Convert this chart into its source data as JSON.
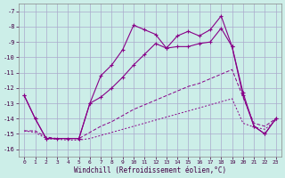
{
  "xlabel": "Windchill (Refroidissement éolien,°C)",
  "bg_color": "#cceee8",
  "grid_color": "#aaaacc",
  "line_color": "#880088",
  "xlim": [
    -0.5,
    23.5
  ],
  "ylim": [
    -16.5,
    -6.5
  ],
  "yticks": [
    -16,
    -15,
    -14,
    -13,
    -12,
    -11,
    -10,
    -9,
    -8,
    -7
  ],
  "xticks": [
    0,
    1,
    2,
    3,
    4,
    5,
    6,
    7,
    8,
    9,
    10,
    11,
    12,
    13,
    14,
    15,
    16,
    17,
    18,
    19,
    20,
    21,
    22,
    23
  ],
  "line1_x": [
    0,
    1,
    2,
    3,
    4,
    5,
    6,
    7,
    8,
    9,
    10,
    11,
    12,
    13,
    14,
    15,
    16,
    17,
    18,
    19,
    20,
    21,
    22,
    23
  ],
  "line1_y": [
    -12.5,
    -14.0,
    -15.3,
    -15.3,
    -15.3,
    -15.3,
    -13.0,
    -11.2,
    -10.5,
    -9.5,
    -7.9,
    -8.2,
    -8.5,
    -9.4,
    -8.6,
    -8.3,
    -8.6,
    -8.2,
    -7.3,
    -9.3,
    -12.3,
    -14.5,
    -15.0,
    -14.0
  ],
  "line2_x": [
    0,
    1,
    2,
    5,
    6,
    7,
    8,
    9,
    10,
    11,
    12,
    13,
    14,
    15,
    16,
    17,
    18,
    19,
    20,
    21,
    22,
    23
  ],
  "line2_y": [
    -12.5,
    -14.0,
    -15.3,
    -15.3,
    -13.0,
    -12.6,
    -12.0,
    -11.3,
    -10.5,
    -9.8,
    -9.1,
    -9.4,
    -9.3,
    -9.3,
    -9.1,
    -9.0,
    -8.1,
    -9.3,
    -12.5,
    -14.5,
    -15.0,
    -14.0
  ],
  "line3_x": [
    0,
    1,
    2,
    3,
    4,
    5,
    6,
    7,
    8,
    9,
    10,
    11,
    12,
    13,
    14,
    15,
    16,
    17,
    18,
    19,
    20,
    21,
    22,
    23
  ],
  "line3_y": [
    -14.8,
    -14.8,
    -15.2,
    -15.3,
    -15.3,
    -15.3,
    -14.9,
    -14.5,
    -14.2,
    -13.8,
    -13.4,
    -13.1,
    -12.8,
    -12.5,
    -12.2,
    -11.9,
    -11.7,
    -11.4,
    -11.1,
    -10.8,
    -12.6,
    -14.3,
    -14.5,
    -14.0
  ],
  "line4_x": [
    0,
    1,
    2,
    3,
    4,
    5,
    6,
    7,
    8,
    9,
    10,
    11,
    12,
    13,
    14,
    15,
    16,
    17,
    18,
    19,
    20,
    21,
    22,
    23
  ],
  "line4_y": [
    -14.8,
    -14.9,
    -15.3,
    -15.35,
    -15.4,
    -15.4,
    -15.3,
    -15.1,
    -14.9,
    -14.7,
    -14.5,
    -14.3,
    -14.1,
    -13.9,
    -13.7,
    -13.5,
    -13.3,
    -13.1,
    -12.9,
    -12.7,
    -14.3,
    -14.55,
    -14.7,
    -14.1
  ]
}
